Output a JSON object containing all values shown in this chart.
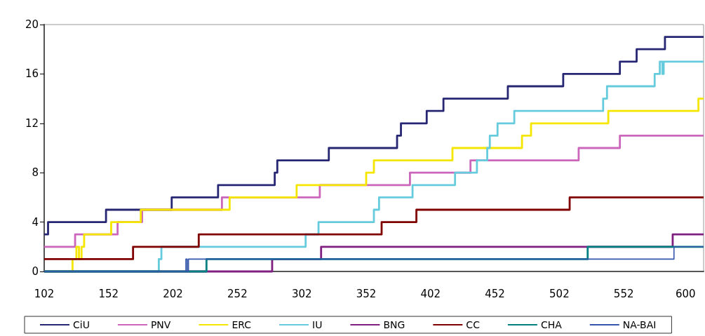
{
  "chart_data": {
    "type": "step",
    "xlim": [
      102,
      614
    ],
    "xticks": [
      102,
      152,
      202,
      252,
      302,
      352,
      402,
      452,
      502,
      552,
      600
    ],
    "ylim": [
      0,
      20
    ],
    "yticks": [
      0,
      4,
      8,
      12,
      16,
      20
    ],
    "grid": false,
    "legend": "bottom",
    "marker": "none",
    "line_style": "solid",
    "series": [
      {
        "name": "CiU",
        "color": "#262673",
        "x": [
          102,
          105,
          150,
          201,
          237,
          281,
          283,
          323,
          376,
          379,
          399,
          412,
          462,
          505,
          549,
          562,
          584,
          614
        ],
        "values": [
          3,
          4,
          5,
          6,
          7,
          8,
          9,
          10,
          11,
          12,
          13,
          14,
          15,
          16,
          17,
          18,
          19,
          19
        ]
      },
      {
        "name": "PNV",
        "color": "#cc66bb",
        "x": [
          102,
          126,
          159,
          178,
          240,
          316,
          386,
          433,
          517,
          549,
          614
        ],
        "values": [
          2,
          3,
          4,
          5,
          6,
          7,
          8,
          9,
          10,
          11,
          11
        ]
      },
      {
        "name": "ERC",
        "color": "#f5e600",
        "x": [
          102,
          124,
          127,
          129,
          131,
          133,
          154,
          177,
          246,
          298,
          352,
          358,
          419,
          473,
          480,
          540,
          610,
          614
        ],
        "values": [
          0,
          1,
          2,
          1,
          2,
          3,
          4,
          5,
          6,
          7,
          8,
          9,
          10,
          11,
          12,
          13,
          14,
          14
        ]
      },
      {
        "name": "IU",
        "color": "#66ccdd",
        "x": [
          102,
          191,
          193,
          305,
          315,
          358,
          362,
          388,
          421,
          438,
          446,
          448,
          454,
          467,
          536,
          539,
          576,
          580,
          582,
          583,
          614
        ],
        "values": [
          0,
          1,
          2,
          3,
          4,
          5,
          6,
          7,
          8,
          9,
          10,
          11,
          12,
          13,
          14,
          15,
          16,
          17,
          16,
          17,
          17
        ]
      },
      {
        "name": "BNG",
        "color": "#7f1f7f",
        "x": [
          102,
          279,
          317,
          590,
          614
        ],
        "values": [
          0,
          1,
          2,
          3,
          3
        ]
      },
      {
        "name": "CC",
        "color": "#800000",
        "x": [
          102,
          171,
          222,
          364,
          391,
          510,
          614
        ],
        "values": [
          1,
          2,
          3,
          4,
          5,
          6,
          6
        ]
      },
      {
        "name": "CHA",
        "color": "#008080",
        "x": [
          102,
          228,
          524,
          614
        ],
        "values": [
          0,
          1,
          2,
          2
        ]
      },
      {
        "name": "NA-BAI",
        "color": "#3355aa",
        "x": [
          102,
          212,
          213,
          214,
          591,
          614
        ],
        "values": [
          0,
          1,
          0,
          1,
          2,
          2
        ]
      }
    ]
  }
}
